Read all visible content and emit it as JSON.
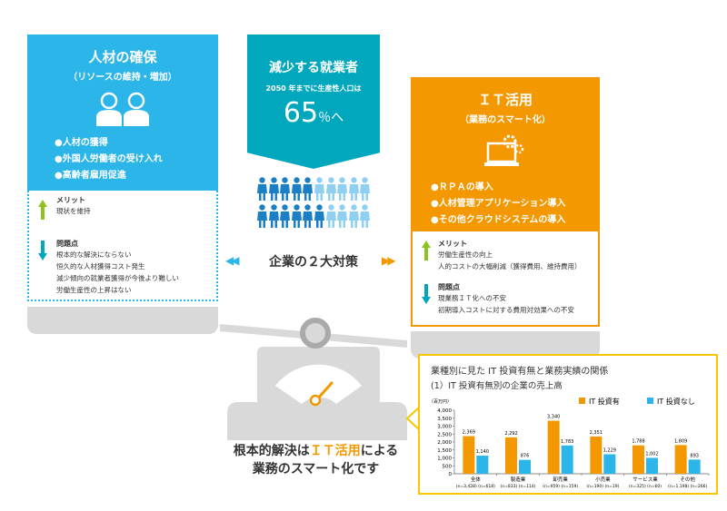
{
  "left": {
    "title": "人材の確保",
    "subtitle": "（リソースの維持・増加）",
    "bullets": [
      "●人材の獲得",
      "●外国人労働者の受け入れ",
      "●高齢者雇用促進"
    ],
    "merit_title": "メリット",
    "merits": [
      "現状を維持"
    ],
    "issue_title": "問題点",
    "issues": [
      "根本的な解決にならない",
      "恒久的な人材獲得コスト発生",
      "減少傾向の就業者獲得が今後より難しい",
      "労働生産性の上昇はない"
    ]
  },
  "middle": {
    "title": "減少する就業者",
    "subtitle": "2050 年までに生産性人口は",
    "value": "65",
    "unit": "％へ",
    "people_total": 20,
    "people_dark": 11
  },
  "center": {
    "label": "企業の２大対策",
    "left_arrow": "◀◀",
    "right_arrow": "▶▶"
  },
  "right": {
    "title": "ＩＴ活用",
    "subtitle": "（業務のスマート化）",
    "bullets": [
      "●ＲＰＡの導入",
      "●人材管理アプリケーション導入",
      "●その他クラウドシステムの導入"
    ],
    "merit_title": "メリット",
    "merits": [
      "労働生産性の向上",
      "人的コストの大幅削減（獲得費用、維持費用）"
    ],
    "issue_title": "問題点",
    "issues": [
      "現業務ＩＴ化への不安",
      "初期導入コストに対する費用対効果への不安"
    ]
  },
  "conclusion": {
    "pre": "根本的解決は",
    "highlight": "ＩＴ活用",
    "post": "による",
    "line2": "業務のスマート化です"
  },
  "colors": {
    "blue": "#2bb5e8",
    "teal": "#00a7bd",
    "orange": "#f39800",
    "yellow": "#f7c600",
    "green": "#8dc21f",
    "gray": "#d9d9d9"
  },
  "chart_data": {
    "type": "bar",
    "title": "業種別に見た IT 投資有無と業務実績の関係",
    "subtitle": "(1）IT 投資有無別の企業の売上高",
    "ylabel": "（百万円）",
    "ylim": [
      0,
      4000
    ],
    "yticks": [
      "0",
      "500",
      "1,000",
      "1,500",
      "2,000",
      "2,500",
      "3,000",
      "3,500",
      "4,000"
    ],
    "categories": [
      "全体",
      "製造業",
      "卸売業",
      "小売業",
      "サービス業",
      "その他"
    ],
    "category_n": [
      "(n=3,428) (n=618)",
      "(n=833) (n=114)",
      "(n=959) (n=159)",
      "(n=190) (n=19)",
      "(n=325) (n=60)",
      "(n=1,198) (n=266)"
    ],
    "series": [
      {
        "name": "IT 投資有",
        "color": "#f39800",
        "values": [
          2369,
          2292,
          3340,
          2351,
          1788,
          1809
        ],
        "labels": [
          "2,369",
          "2,292",
          "3,340",
          "2,351",
          "1,788",
          "1,809"
        ]
      },
      {
        "name": "IT 投資なし",
        "color": "#2bb5e8",
        "values": [
          1140,
          876,
          1783,
          1229,
          1002,
          893
        ],
        "labels": [
          "1,140",
          "876",
          "1,783",
          "1,229",
          "1,002",
          "893"
        ]
      }
    ],
    "legend": "top-right"
  }
}
